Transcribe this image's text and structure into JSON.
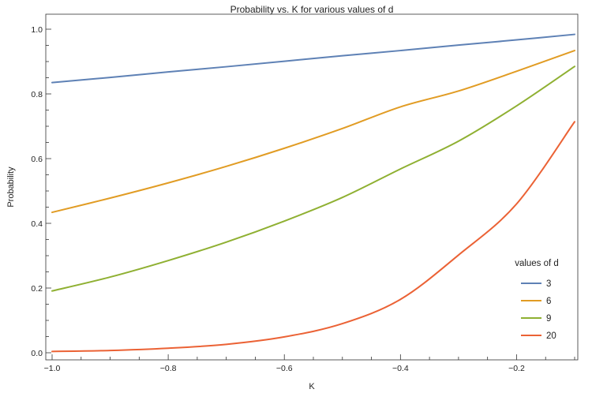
{
  "chart_data": {
    "type": "line",
    "title": "Probability vs. K for various values of d",
    "xlabel": "K",
    "ylabel": "Probability",
    "xlim": [
      -1.0,
      -0.1
    ],
    "ylim": [
      0.0,
      1.0
    ],
    "grid": false,
    "x_ticks_major": [
      -1.0,
      -0.8,
      -0.6,
      -0.4,
      -0.2
    ],
    "x_tick_labels": [
      "−1.0",
      "−0.8",
      "−0.6",
      "−0.4",
      "−0.2"
    ],
    "y_ticks_major": [
      0.0,
      0.2,
      0.4,
      0.6,
      0.8,
      1.0
    ],
    "y_tick_labels": [
      "0.0",
      "0.2",
      "0.4",
      "0.6",
      "0.8",
      "1.0"
    ],
    "legend": {
      "title": "values of d",
      "placement": "bottom-right"
    },
    "x": [
      -1.0,
      -0.9,
      -0.8,
      -0.7,
      -0.6,
      -0.5,
      -0.4,
      -0.3,
      -0.2,
      -0.1
    ],
    "series": [
      {
        "name": "3",
        "color": "#5e81b5",
        "values": [
          0.835,
          0.851,
          0.868,
          0.884,
          0.901,
          0.918,
          0.934,
          0.951,
          0.967,
          0.984
        ]
      },
      {
        "name": "6",
        "color": "#e19c24",
        "values": [
          0.434,
          0.478,
          0.525,
          0.576,
          0.632,
          0.693,
          0.76,
          0.809,
          0.87,
          0.934
        ]
      },
      {
        "name": "9",
        "color": "#8fb032",
        "values": [
          0.191,
          0.234,
          0.285,
          0.342,
          0.407,
          0.48,
          0.568,
          0.654,
          0.763,
          0.885
        ]
      },
      {
        "name": "20",
        "color": "#eb6235",
        "values": [
          0.004,
          0.007,
          0.014,
          0.026,
          0.049,
          0.09,
          0.165,
          0.302,
          0.46,
          0.714
        ]
      }
    ]
  }
}
